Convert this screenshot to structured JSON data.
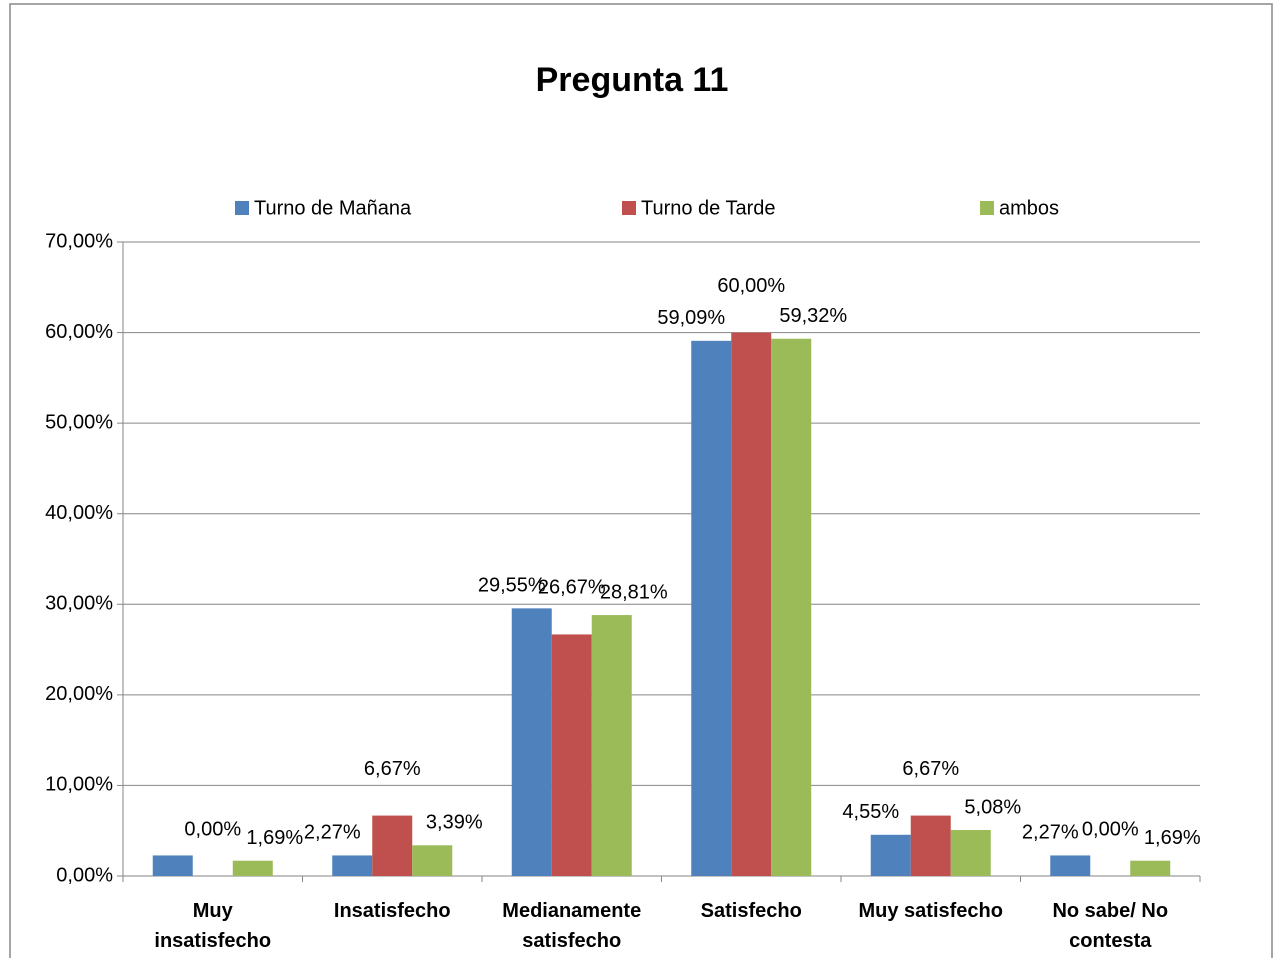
{
  "chart_data": {
    "type": "bar",
    "title": "Pregunta 11",
    "categories": [
      "Muy insatisfecho",
      "Insatisfecho",
      "Medianamente satisfecho",
      "Satisfecho",
      "Muy satisfecho",
      "No sabe/ No contesta"
    ],
    "series": [
      {
        "name": "Turno de Mañana",
        "color": "#4f81bd",
        "values": [
          2.27,
          2.27,
          29.55,
          59.09,
          4.55,
          2.27
        ],
        "value_labels": [
          null,
          "2,27%",
          "29,55%",
          "59,09%",
          "4,55%",
          "2,27%"
        ]
      },
      {
        "name": "Turno de Tarde",
        "color": "#c0504d",
        "values": [
          0,
          6.67,
          26.67,
          60,
          6.67,
          0
        ],
        "value_labels": [
          "0,00%",
          "6,67%",
          "26,67%",
          "60,00%",
          "6,67%",
          "0,00%"
        ]
      },
      {
        "name": "ambos",
        "color": "#9bbb59",
        "values": [
          1.69,
          3.39,
          28.81,
          59.32,
          5.08,
          1.69
        ],
        "value_labels": [
          "1,69%",
          "3,39%",
          "28,81%",
          "59,32%",
          "5,08%",
          "1,69%"
        ]
      }
    ],
    "ylim": [
      0,
      70
    ],
    "yticks": [
      {
        "value": 0,
        "label": "0,00%"
      },
      {
        "value": 10,
        "label": "10,00%"
      },
      {
        "value": 20,
        "label": "20,00%"
      },
      {
        "value": 30,
        "label": "30,00%"
      },
      {
        "value": 40,
        "label": "40,00%"
      },
      {
        "value": 50,
        "label": "50,00%"
      },
      {
        "value": 60,
        "label": "60,00%"
      },
      {
        "value": 70,
        "label": "70,00%"
      }
    ],
    "grid": true,
    "legend": "top"
  }
}
